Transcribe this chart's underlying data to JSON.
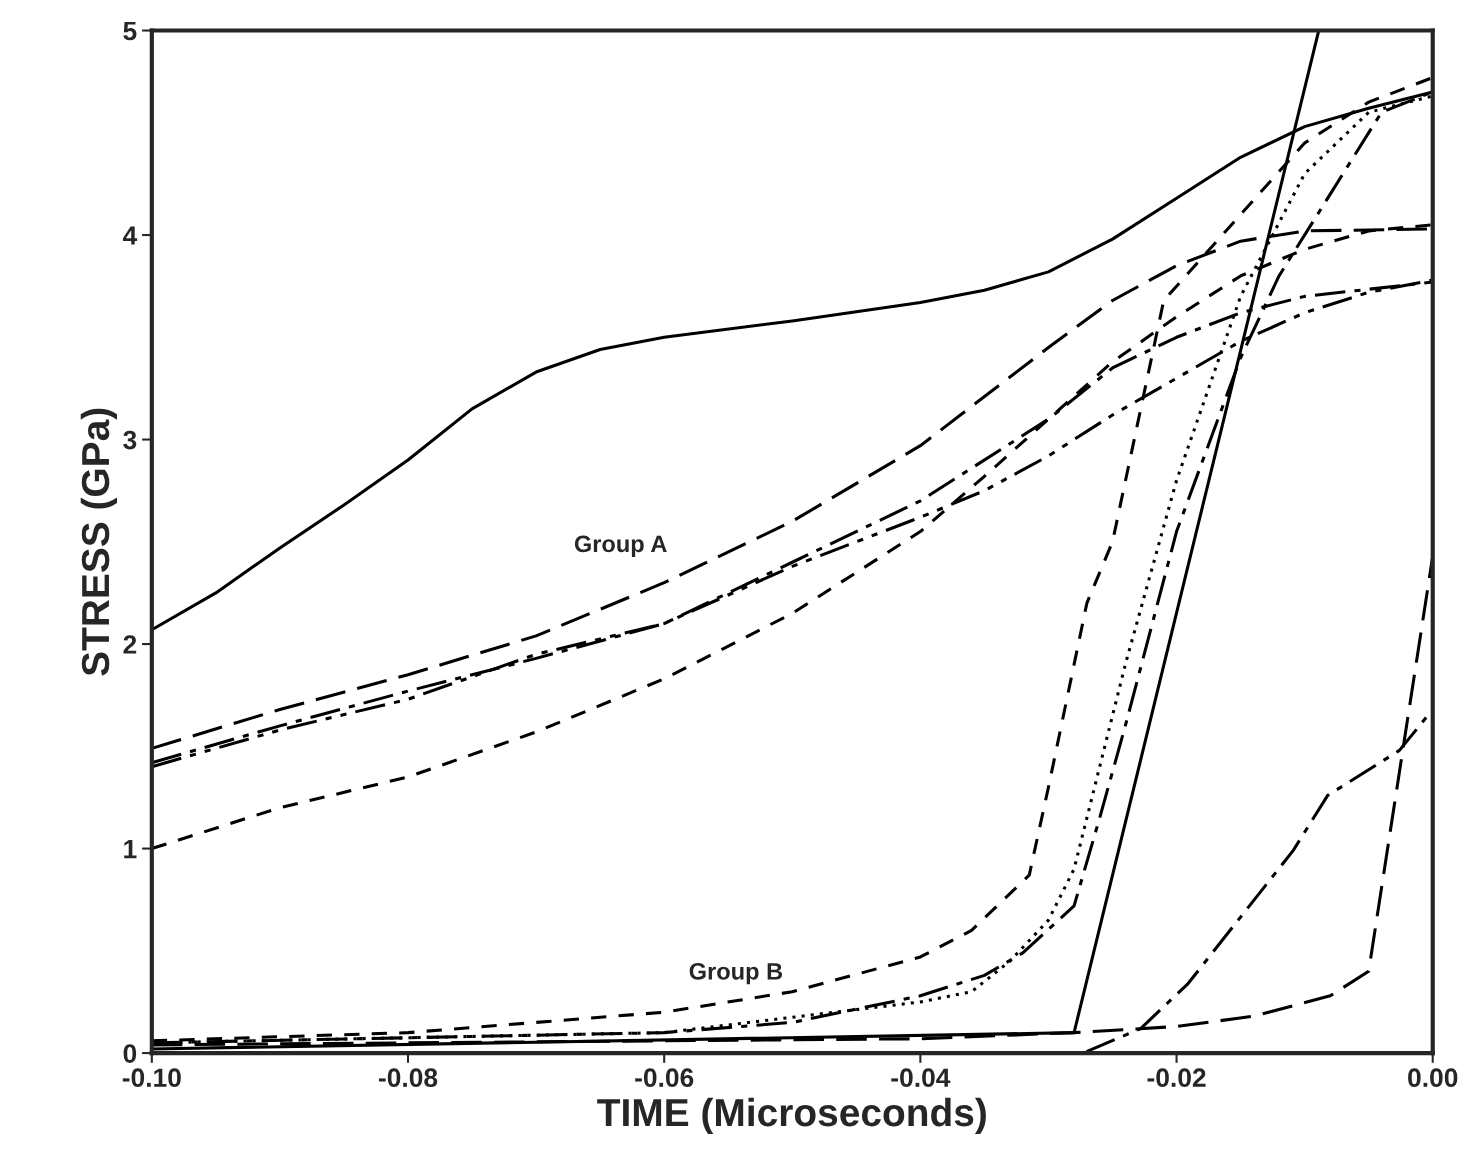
{
  "chart_data": {
    "type": "line",
    "xlabel": "TIME (Microseconds)",
    "ylabel": "STRESS (GPa)",
    "xlim": [
      -0.1,
      0.0
    ],
    "ylim": [
      0,
      5
    ],
    "xticks": [
      {
        "value": -0.1,
        "label": "-0.10"
      },
      {
        "value": -0.08,
        "label": "-0.08"
      },
      {
        "value": -0.06,
        "label": "-0.06"
      },
      {
        "value": -0.04,
        "label": "-0.04"
      },
      {
        "value": -0.02,
        "label": "-0.02"
      },
      {
        "value": 0.0,
        "label": "0.00"
      }
    ],
    "yticks": [
      0,
      1,
      2,
      3,
      4,
      5
    ],
    "grid": false,
    "legend": false,
    "marker": "none",
    "annotations": [
      "Group A",
      "Group B"
    ],
    "series": [
      {
        "color": "#000000",
        "line_style": "solid",
        "x": [
          -0.1,
          -0.095,
          -0.09,
          -0.085,
          -0.08,
          -0.075,
          -0.07,
          -0.065,
          -0.06,
          -0.05,
          -0.04,
          -0.035,
          -0.03,
          -0.025,
          -0.02,
          -0.015,
          -0.01,
          -0.005,
          0.0
        ],
        "values": [
          2.07,
          2.25,
          2.47,
          2.68,
          2.9,
          3.15,
          3.33,
          3.44,
          3.5,
          3.58,
          3.67,
          3.73,
          3.82,
          3.98,
          4.18,
          4.38,
          4.53,
          4.62,
          4.7
        ]
      },
      {
        "color": "#000000",
        "line_style": "longdash",
        "x": [
          -0.1,
          -0.09,
          -0.08,
          -0.07,
          -0.06,
          -0.05,
          -0.04,
          -0.03,
          -0.025,
          -0.02,
          -0.015,
          -0.01,
          0.0
        ],
        "values": [
          1.49,
          1.68,
          1.85,
          2.04,
          2.3,
          2.6,
          2.97,
          3.45,
          3.68,
          3.85,
          3.97,
          4.02,
          4.03
        ]
      },
      {
        "color": "#000000",
        "line_style": "dashed",
        "x": [
          -0.1,
          -0.09,
          -0.08,
          -0.07,
          -0.06,
          -0.05,
          -0.04,
          -0.035,
          -0.03,
          -0.025,
          -0.02,
          -0.015,
          -0.01,
          -0.005,
          0.0
        ],
        "values": [
          1.0,
          1.2,
          1.35,
          1.57,
          1.83,
          2.15,
          2.55,
          2.82,
          3.1,
          3.38,
          3.6,
          3.8,
          3.93,
          4.02,
          4.05
        ]
      },
      {
        "color": "#000000",
        "line_style": "dashdot",
        "x": [
          -0.1,
          -0.09,
          -0.08,
          -0.07,
          -0.06,
          -0.05,
          -0.04,
          -0.03,
          -0.025,
          -0.02,
          -0.015,
          -0.01,
          0.0
        ],
        "values": [
          1.42,
          1.6,
          1.77,
          1.93,
          2.1,
          2.4,
          2.7,
          3.1,
          3.35,
          3.5,
          3.62,
          3.7,
          3.77
        ]
      },
      {
        "color": "#000000",
        "line_style": "dashdotdot",
        "x": [
          -0.1,
          -0.09,
          -0.08,
          -0.07,
          -0.06,
          -0.05,
          -0.04,
          -0.035,
          -0.03,
          -0.025,
          -0.02,
          -0.015,
          -0.01,
          -0.005,
          0.0
        ],
        "values": [
          1.4,
          1.58,
          1.73,
          1.95,
          2.1,
          2.38,
          2.62,
          2.75,
          2.92,
          3.12,
          3.3,
          3.48,
          3.62,
          3.72,
          3.78
        ]
      },
      {
        "color": "#000000",
        "line_style": "dashed",
        "x": [
          -0.1,
          -0.08,
          -0.06,
          -0.05,
          -0.04,
          -0.036,
          -0.0315,
          -0.03,
          -0.027,
          -0.025,
          -0.021,
          -0.015,
          -0.01,
          -0.005,
          0.0
        ],
        "values": [
          0.06,
          0.1,
          0.2,
          0.3,
          0.47,
          0.6,
          0.87,
          1.3,
          2.2,
          2.5,
          3.68,
          4.1,
          4.45,
          4.65,
          4.77
        ]
      },
      {
        "color": "#000000",
        "line_style": "dotted",
        "x": [
          -0.1,
          -0.06,
          -0.04,
          -0.036,
          -0.033,
          -0.03,
          -0.028,
          -0.026,
          -0.024,
          -0.02,
          -0.015,
          -0.01,
          -0.005,
          0.0
        ],
        "values": [
          0.05,
          0.1,
          0.25,
          0.3,
          0.45,
          0.65,
          0.9,
          1.4,
          1.9,
          2.8,
          3.7,
          4.3,
          4.6,
          4.68
        ]
      },
      {
        "color": "#000000",
        "line_style": "dashdot",
        "x": [
          -0.1,
          -0.06,
          -0.05,
          -0.04,
          -0.035,
          -0.032,
          -0.028,
          -0.026,
          -0.024,
          -0.02,
          -0.015,
          -0.012,
          -0.008,
          -0.004,
          0.0
        ],
        "values": [
          0.05,
          0.1,
          0.15,
          0.28,
          0.38,
          0.49,
          0.72,
          1.15,
          1.6,
          2.55,
          3.4,
          3.8,
          4.2,
          4.6,
          4.7
        ]
      },
      {
        "color": "#000000",
        "line_style": "solid",
        "x": [
          -0.1,
          -0.028,
          -0.0089
        ],
        "values": [
          0.02,
          0.1,
          5.0
        ]
      },
      {
        "color": "#000000",
        "line_style": "longdash",
        "x": [
          -0.1,
          -0.04,
          -0.028,
          -0.02,
          -0.014,
          -0.008,
          -0.005,
          0.0
        ],
        "values": [
          0.04,
          0.07,
          0.1,
          0.13,
          0.18,
          0.28,
          0.4,
          2.43
        ]
      },
      {
        "color": "#000000",
        "line_style": "dashdot",
        "x": [
          -0.1,
          -0.0273,
          -0.0228,
          -0.0191,
          -0.0109,
          -0.0082,
          -0.0026,
          0.0
        ],
        "values": [
          0.0,
          0.0,
          0.12,
          0.34,
          0.99,
          1.26,
          1.48,
          1.68
        ]
      }
    ]
  }
}
